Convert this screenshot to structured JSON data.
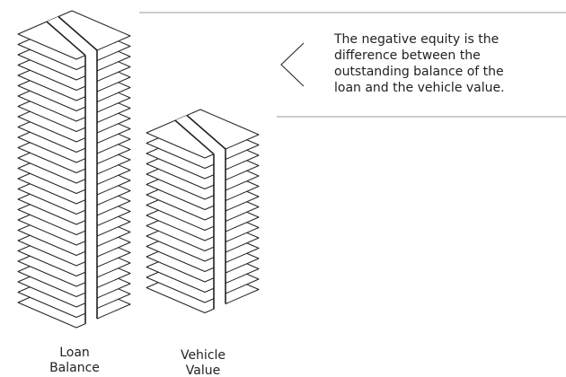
{
  "callout": {
    "text_lines": [
      "The negative equity is the",
      "difference between the",
      "outstanding balance of the",
      "loan and the vehicle value."
    ]
  },
  "labels": [
    [
      "Loan",
      "Balance"
    ],
    [
      "Vehicle",
      "Value"
    ]
  ]
}
